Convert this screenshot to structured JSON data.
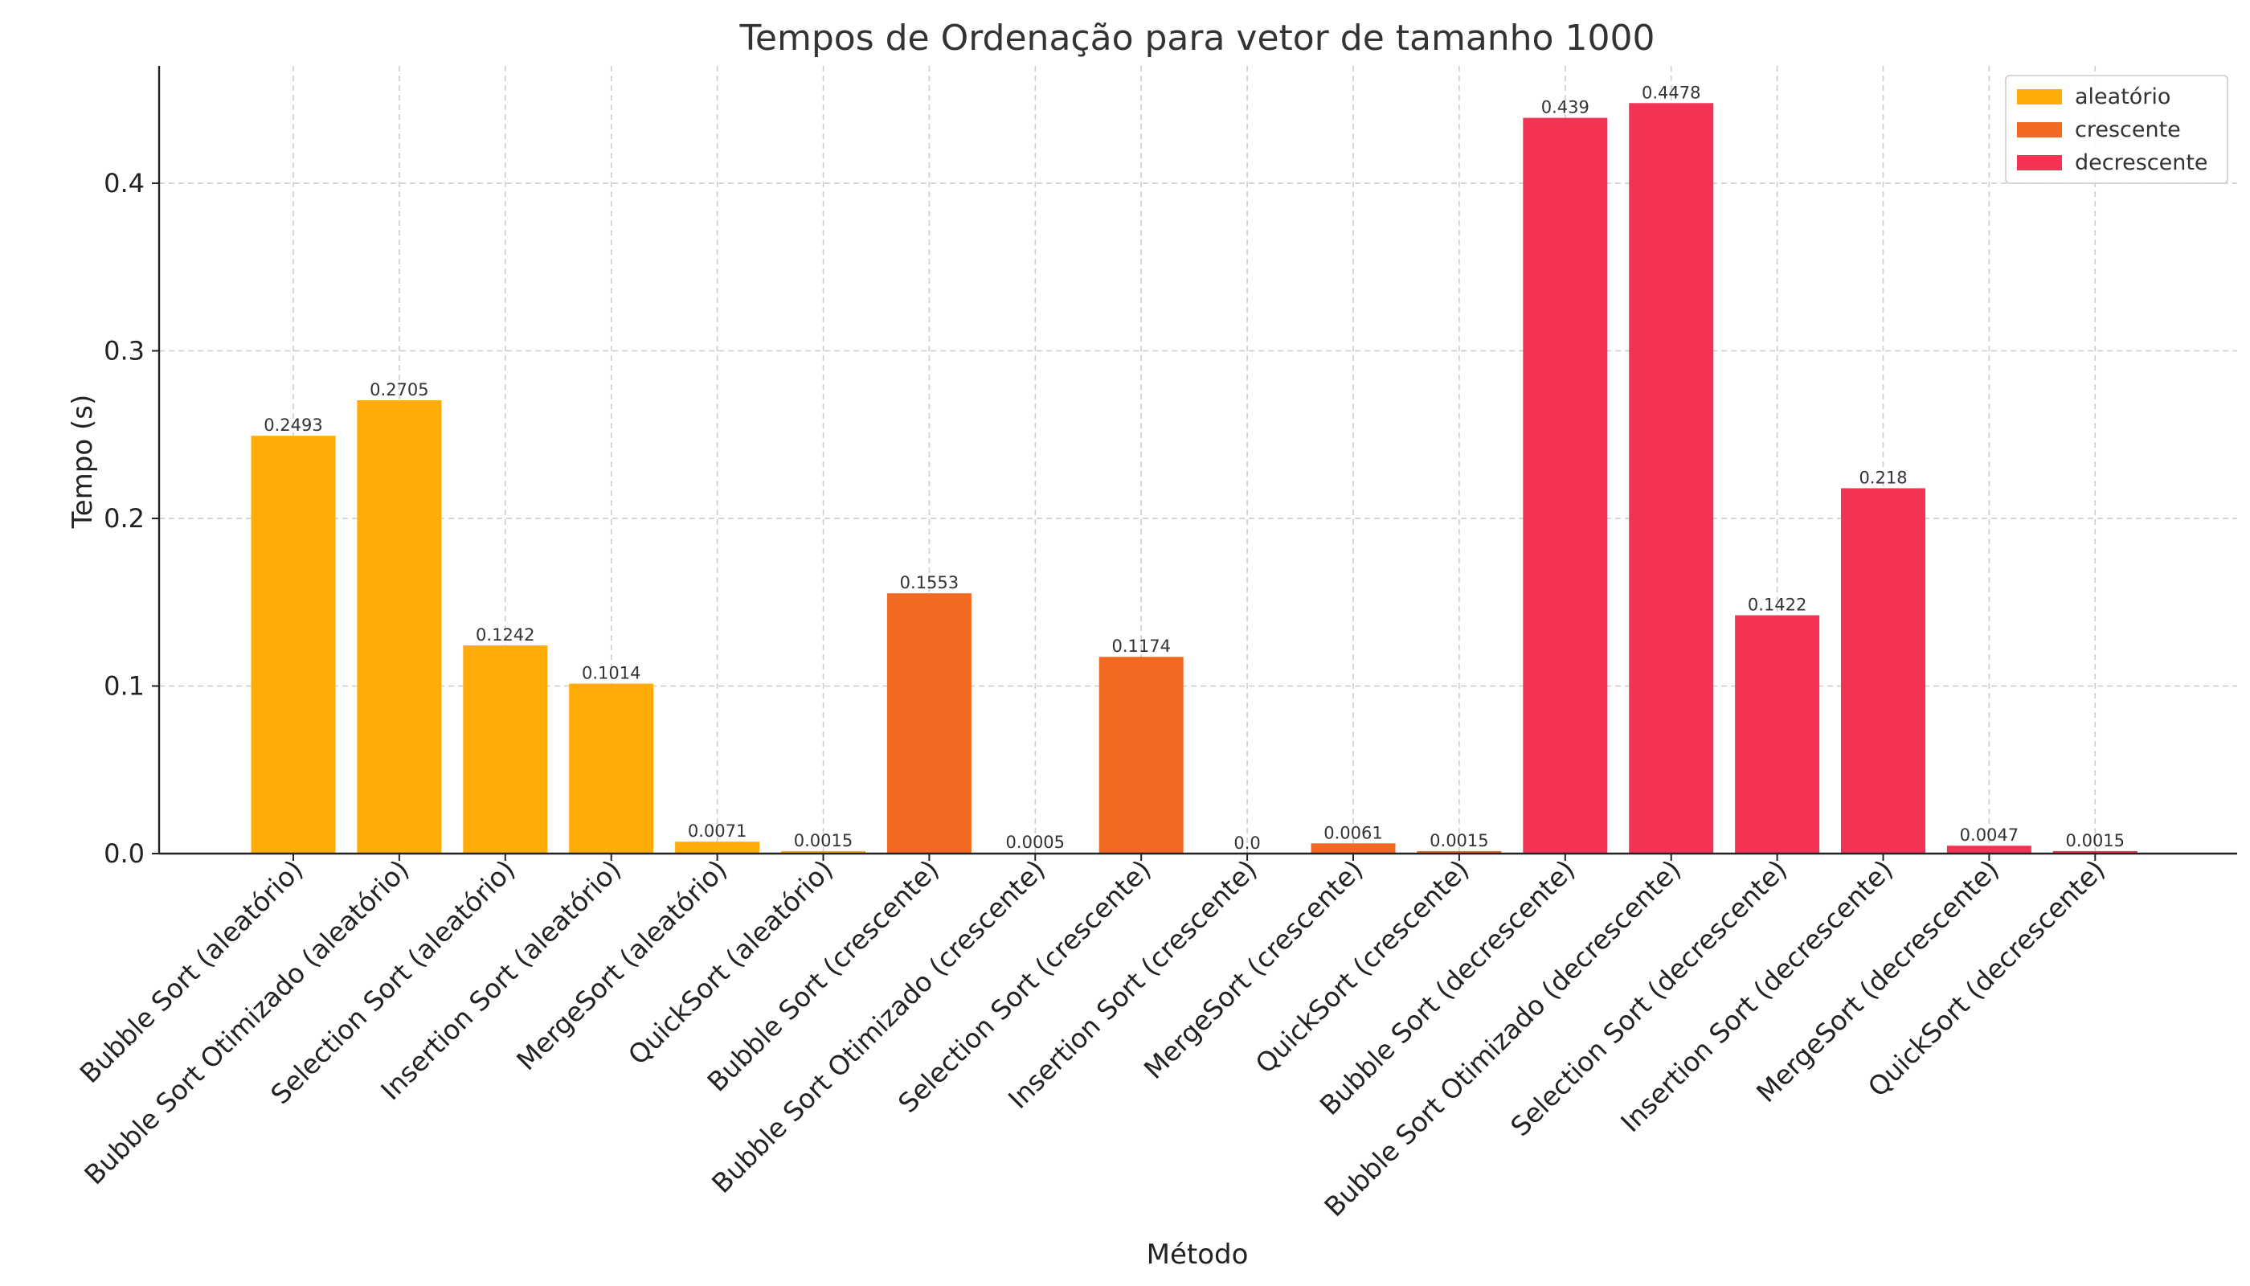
{
  "chart_data": {
    "type": "bar",
    "title": "Tempos de Ordenação para vetor de tamanho 1000",
    "xlabel": "Método",
    "ylabel": "Tempo (s)",
    "ylim": [
      0,
      0.47
    ],
    "yticks": [
      0.0,
      0.1,
      0.2,
      0.3,
      0.4
    ],
    "ytick_labels": [
      "0.0",
      "0.1",
      "0.2",
      "0.3",
      "0.4"
    ],
    "grid": true,
    "legend_position": "top-right",
    "series": [
      {
        "name": "aleatório",
        "color": "#FFAC09"
      },
      {
        "name": "crescente",
        "color": "#F26A22"
      },
      {
        "name": "decrescente",
        "color": "#F43254"
      }
    ],
    "bars": [
      {
        "category": "Bubble Sort (aleatório)",
        "series": "aleatório",
        "value": 0.2493,
        "label": "0.2493"
      },
      {
        "category": "Bubble Sort Otimizado (aleatório)",
        "series": "aleatório",
        "value": 0.2705,
        "label": "0.2705"
      },
      {
        "category": "Selection Sort (aleatório)",
        "series": "aleatório",
        "value": 0.1242,
        "label": "0.1242"
      },
      {
        "category": "Insertion Sort (aleatório)",
        "series": "aleatório",
        "value": 0.1014,
        "label": "0.1014"
      },
      {
        "category": "MergeSort (aleatório)",
        "series": "aleatório",
        "value": 0.0071,
        "label": "0.0071"
      },
      {
        "category": "QuickSort (aleatório)",
        "series": "aleatório",
        "value": 0.0015,
        "label": "0.0015"
      },
      {
        "category": "Bubble Sort (crescente)",
        "series": "crescente",
        "value": 0.1553,
        "label": "0.1553"
      },
      {
        "category": "Bubble Sort Otimizado (crescente)",
        "series": "crescente",
        "value": 0.0005,
        "label": "0.0005"
      },
      {
        "category": "Selection Sort (crescente)",
        "series": "crescente",
        "value": 0.1174,
        "label": "0.1174"
      },
      {
        "category": "Insertion Sort (crescente)",
        "series": "crescente",
        "value": 0.0,
        "label": "0.0"
      },
      {
        "category": "MergeSort (crescente)",
        "series": "crescente",
        "value": 0.0061,
        "label": "0.0061"
      },
      {
        "category": "QuickSort (crescente)",
        "series": "crescente",
        "value": 0.0015,
        "label": "0.0015"
      },
      {
        "category": "Bubble Sort (decrescente)",
        "series": "decrescente",
        "value": 0.439,
        "label": "0.439"
      },
      {
        "category": "Bubble Sort Otimizado (decrescente)",
        "series": "decrescente",
        "value": 0.4478,
        "label": "0.4478"
      },
      {
        "category": "Selection Sort (decrescente)",
        "series": "decrescente",
        "value": 0.1422,
        "label": "0.1422"
      },
      {
        "category": "Insertion Sort (decrescente)",
        "series": "decrescente",
        "value": 0.218,
        "label": "0.218"
      },
      {
        "category": "MergeSort (decrescente)",
        "series": "decrescente",
        "value": 0.0047,
        "label": "0.0047"
      },
      {
        "category": "QuickSort (decrescente)",
        "series": "decrescente",
        "value": 0.0015,
        "label": "0.0015"
      }
    ]
  }
}
